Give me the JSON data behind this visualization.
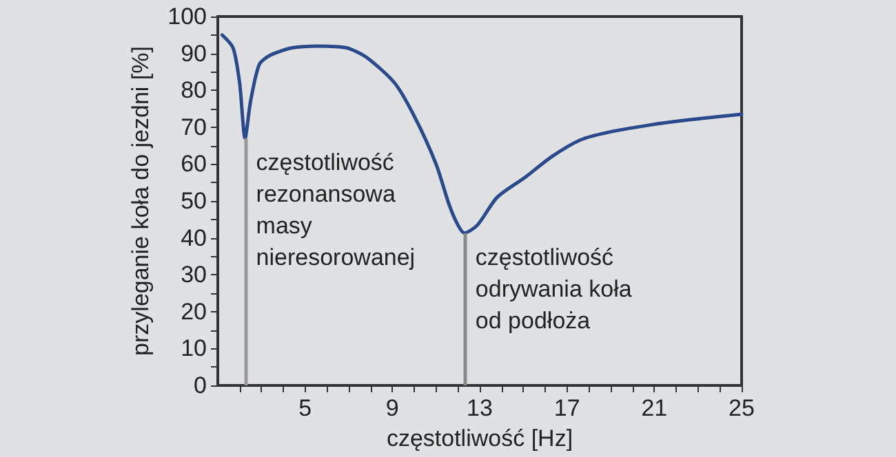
{
  "chart_data": {
    "type": "line",
    "xlabel": "częstotliwość [Hz]",
    "ylabel": "przyleganie koła do jezdni [%]",
    "xlim": [
      1,
      25
    ],
    "ylim": [
      0,
      100
    ],
    "xticks": [
      {
        "value": 2,
        "label": null
      },
      {
        "value": 3,
        "label": null
      },
      {
        "value": 4,
        "label": null
      },
      5,
      {
        "value": 6,
        "label": null
      },
      {
        "value": 7,
        "label": null
      },
      {
        "value": 8,
        "label": null
      },
      9,
      {
        "value": 10,
        "label": null
      },
      {
        "value": 11,
        "label": null
      },
      {
        "value": 12,
        "label": null
      },
      13,
      {
        "value": 14,
        "label": null
      },
      {
        "value": 15,
        "label": null
      },
      {
        "value": 16,
        "label": null
      },
      17,
      {
        "value": 18,
        "label": null
      },
      {
        "value": 19,
        "label": null
      },
      {
        "value": 20,
        "label": null
      },
      21,
      {
        "value": 22,
        "label": null
      },
      {
        "value": 23,
        "label": null
      },
      {
        "value": 24,
        "label": null
      },
      25
    ],
    "yticks": [
      0,
      {
        "value": 5,
        "label": null
      },
      10,
      {
        "value": 15,
        "label": null
      },
      20,
      {
        "value": 25,
        "label": null
      },
      30,
      {
        "value": 35,
        "label": null
      },
      40,
      {
        "value": 45,
        "label": null
      },
      50,
      {
        "value": 55,
        "label": null
      },
      60,
      {
        "value": 65,
        "label": null
      },
      70,
      {
        "value": 75,
        "label": null
      },
      80,
      {
        "value": 85,
        "label": null
      },
      90,
      {
        "value": 95,
        "label": null
      },
      100
    ],
    "grid": false,
    "marker": "none",
    "line_style": "solid",
    "series": [
      {
        "color": "#2b4a8c",
        "x": [
          1.2,
          1.7,
          2.0,
          2.25,
          2.5,
          2.9,
          3.4,
          4.4,
          5.6,
          6.9,
          7.8,
          9.1,
          10.0,
          11.0,
          11.6,
          12.0,
          12.3,
          12.9,
          13.8,
          15.1,
          16.3,
          17.6,
          18.8,
          20.7,
          22.6,
          25
        ],
        "values": [
          95,
          91.5,
          82,
          67,
          77,
          87,
          89.5,
          91.5,
          92,
          91.5,
          89,
          82,
          73,
          60,
          49,
          43.5,
          41.3,
          43.5,
          51,
          56.5,
          62,
          66.5,
          68.5,
          70.5,
          72,
          73.5
        ]
      }
    ],
    "ref_lines": [
      {
        "axis": "x",
        "value": 2.25,
        "label": "częstotliwość\nrezonansowa\nmasy\nnieresorowanej",
        "color": "#999999"
      },
      {
        "axis": "x",
        "value": 12.3,
        "label": "częstotliwość\nodrywania koła\nod podłoża",
        "color": "#888888"
      }
    ]
  }
}
